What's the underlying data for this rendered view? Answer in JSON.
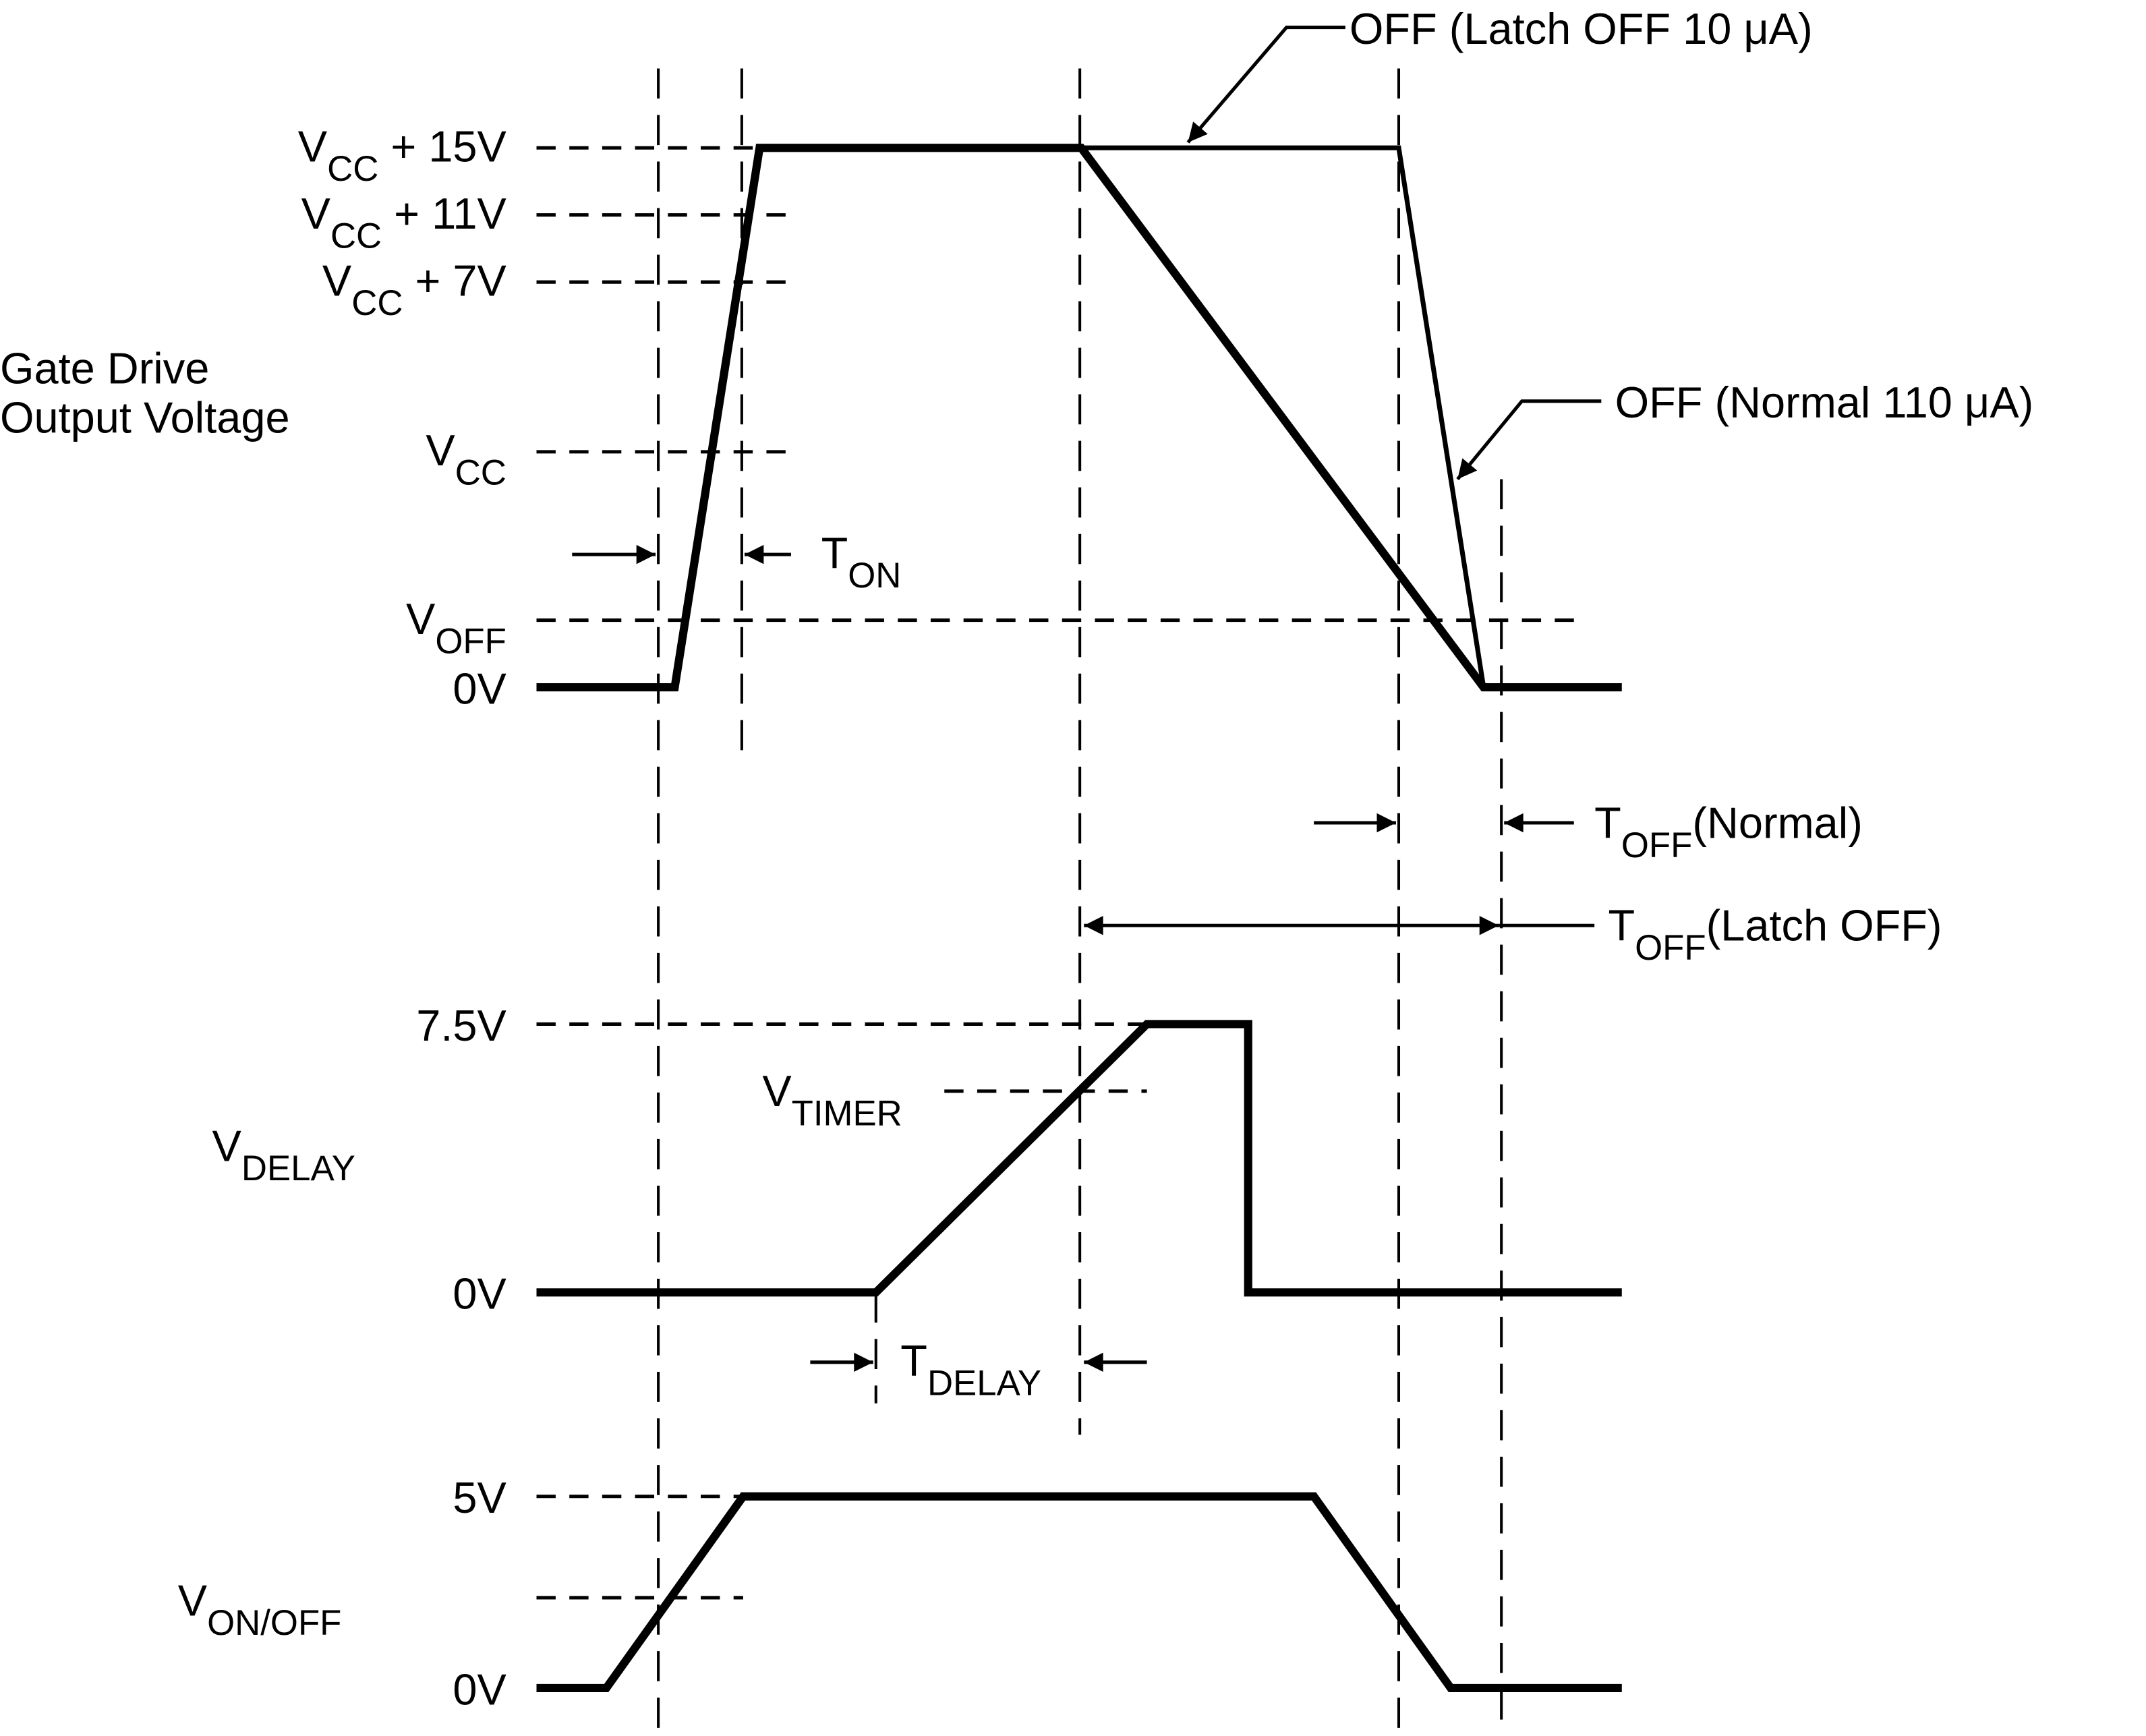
{
  "gate_drive": {
    "title_line1": "Gate Drive",
    "title_line2": "Output Voltage",
    "levels": {
      "vcc15": {
        "main": "V",
        "sub": "CC",
        "rest": " + 15V"
      },
      "vcc11": {
        "main": "V",
        "sub": "CC",
        "rest": " + 11V"
      },
      "vcc7": {
        "main": "V",
        "sub": "CC",
        "rest": " + 7V"
      },
      "vcc": {
        "main": "V",
        "sub": "CC"
      },
      "voff": {
        "main": "V",
        "sub": "OFF"
      },
      "zero": "0V"
    },
    "ton": {
      "main": "T",
      "sub": "ON"
    },
    "latch_off_note": "OFF (Latch OFF 10 μA)",
    "normal_off_note": "OFF (Normal 110 μA)",
    "toff_normal": {
      "main": "T",
      "sub": "OFF",
      "rest": "(Normal)"
    },
    "toff_latch": {
      "main": "T",
      "sub": "OFF",
      "rest": "(Latch OFF)"
    }
  },
  "delay": {
    "label": {
      "main": "V",
      "sub": "DELAY"
    },
    "level_high": "7.5V",
    "level_zero": "0V",
    "vtimer": {
      "main": "V",
      "sub": "TIMER"
    },
    "tdelay": {
      "main": "T",
      "sub": "DELAY"
    }
  },
  "onoff": {
    "label": {
      "main": "V",
      "sub": "ON/OFF"
    },
    "level_high": "5V",
    "level_zero": "0V"
  }
}
